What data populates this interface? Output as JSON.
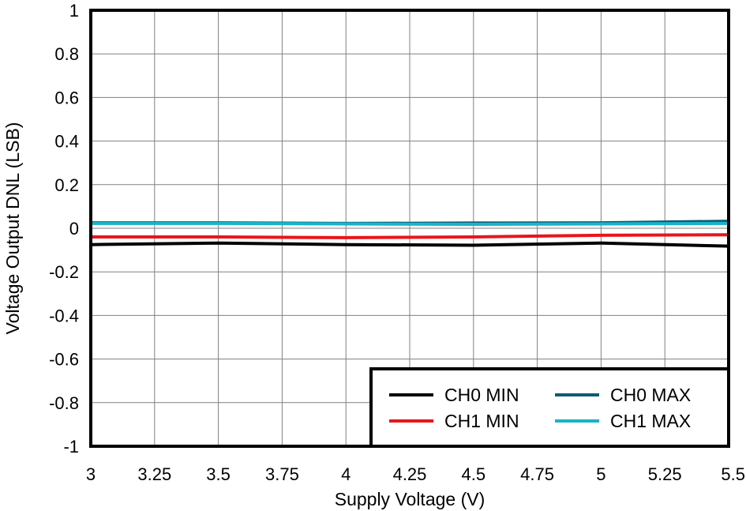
{
  "chart_data": {
    "type": "line",
    "title": "",
    "xlabel": "Supply Voltage (V)",
    "ylabel": "Voltage Output DNL (LSB)",
    "xlim": [
      3,
      5.5
    ],
    "ylim": [
      -1,
      1
    ],
    "x_ticks": [
      "3",
      "3.25",
      "3.5",
      "3.75",
      "4",
      "4.25",
      "4.5",
      "4.75",
      "5",
      "5.25",
      "5.5"
    ],
    "y_ticks": [
      "1",
      "0.8",
      "0.6",
      "0.4",
      "0.2",
      "0",
      "-0.2",
      "-0.4",
      "-0.6",
      "-0.8",
      "-1"
    ],
    "grid": true,
    "legend_position": "bottom-right",
    "x": [
      3,
      3.5,
      4,
      4.5,
      5,
      5.5
    ],
    "series": [
      {
        "name": "CH0 MIN",
        "color": "#000000",
        "values": [
          -0.075,
          -0.068,
          -0.075,
          -0.078,
          -0.068,
          -0.082
        ]
      },
      {
        "name": "CH0 MAX",
        "color": "#0d5b73",
        "values": [
          0.025,
          0.025,
          0.022,
          0.024,
          0.025,
          0.032
        ]
      },
      {
        "name": "CH1 MIN",
        "color": "#e8161b",
        "values": [
          -0.04,
          -0.04,
          -0.043,
          -0.04,
          -0.032,
          -0.03
        ]
      },
      {
        "name": "CH1 MAX",
        "color": "#1ab3c8",
        "values": [
          0.022,
          0.022,
          0.02,
          0.018,
          0.02,
          0.022
        ]
      }
    ]
  }
}
